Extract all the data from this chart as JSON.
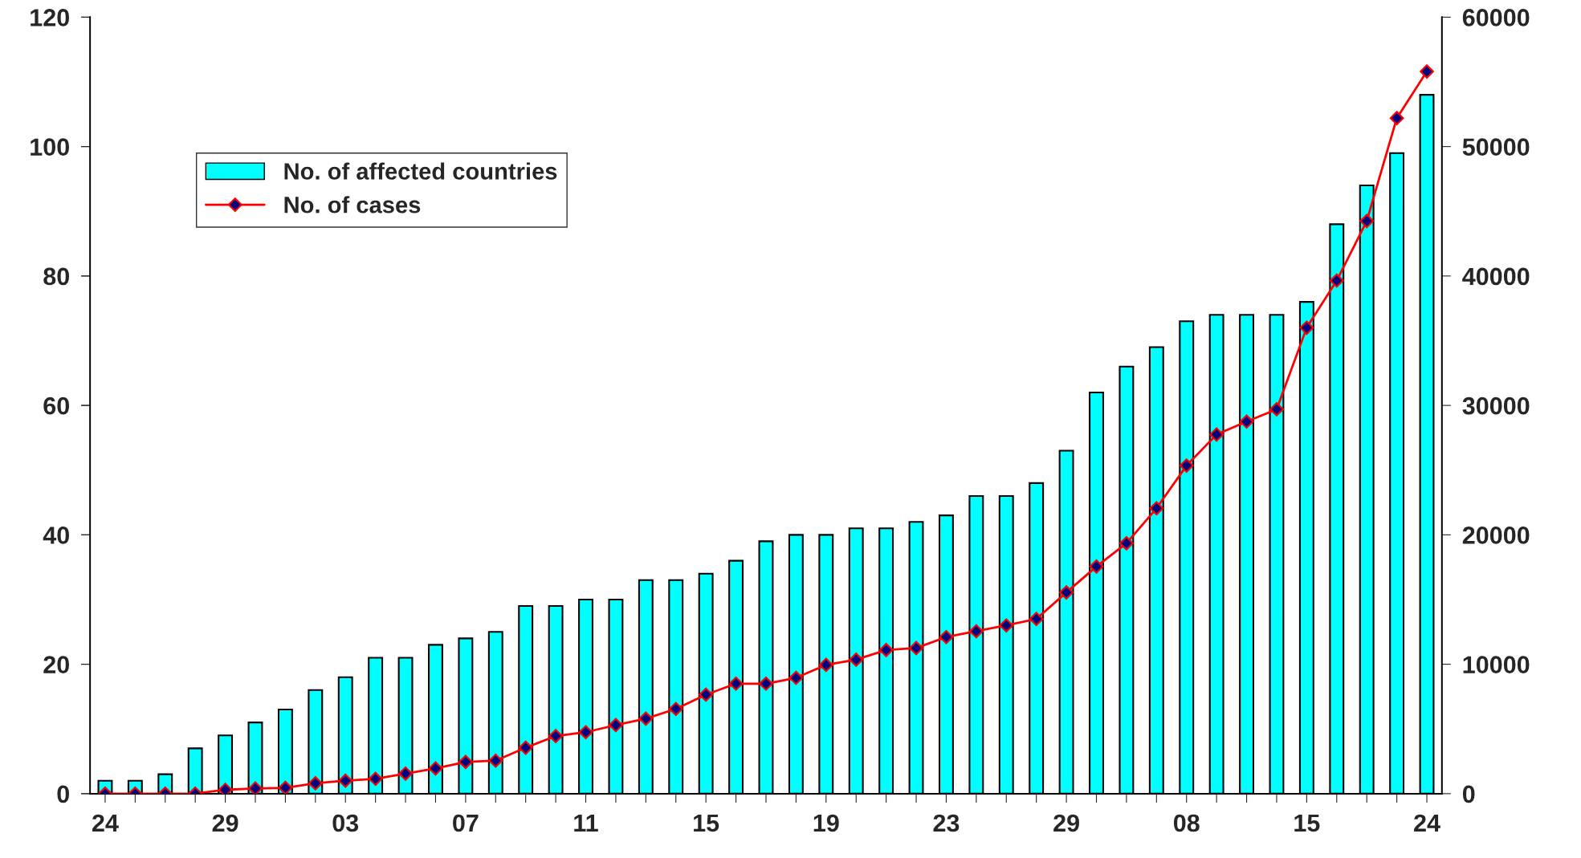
{
  "chart_data": {
    "type": "bar",
    "categories": [
      "24",
      null,
      null,
      null,
      "29",
      null,
      null,
      null,
      "03",
      null,
      null,
      null,
      "07",
      null,
      null,
      null,
      "11",
      null,
      null,
      null,
      "15",
      null,
      null,
      null,
      "19",
      null,
      null,
      null,
      "23",
      null,
      null,
      null,
      "29",
      null,
      null,
      null,
      "08",
      null,
      null,
      null,
      "15",
      null,
      null,
      null,
      "24"
    ],
    "series": [
      {
        "name": "No. of affected countries",
        "color": "#00ffff",
        "values": [
          2,
          2,
          3,
          7,
          9,
          11,
          13,
          16,
          18,
          21,
          21,
          23,
          24,
          25,
          29,
          29,
          30,
          30,
          33,
          33,
          34,
          36,
          39,
          40,
          40,
          41,
          41,
          42,
          43,
          46,
          46,
          48,
          53,
          62,
          66,
          69,
          73,
          74,
          74,
          74,
          76,
          88,
          94,
          99,
          108
        ]
      },
      {
        "name": "No. of cases",
        "type": "line",
        "axis": "y2",
        "color": "#ff0000",
        "marker": "diamond",
        "values": [
          0,
          0,
          0,
          0,
          300,
          400,
          450,
          800,
          1000,
          1150,
          1550,
          1950,
          2450,
          2550,
          3550,
          4450,
          4750,
          5300,
          5800,
          6550,
          7650,
          8500,
          8500,
          8950,
          9950,
          10350,
          11100,
          11250,
          12100,
          12550,
          13000,
          13500,
          15550,
          17550,
          19350,
          22050,
          25350,
          27750,
          28750,
          29700,
          36000,
          39650,
          44250,
          52200,
          55800
        ]
      }
    ],
    "ylim": [
      0,
      120
    ],
    "yticks": [
      0,
      20,
      40,
      60,
      80,
      100,
      120
    ],
    "y2lim": [
      0,
      60000
    ],
    "y2ticks": [
      0,
      10000,
      20000,
      30000,
      40000,
      50000,
      60000
    ],
    "grid": false,
    "legend": "top left"
  }
}
